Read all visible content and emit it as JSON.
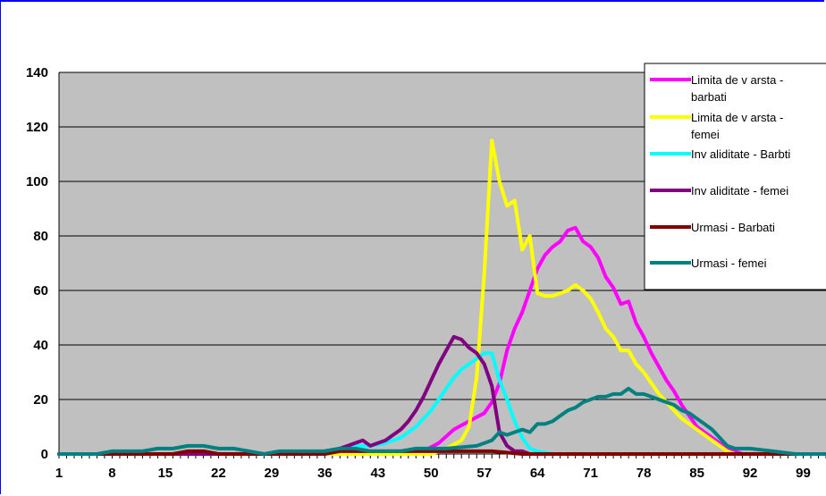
{
  "chart_data": {
    "type": "line",
    "ylim": [
      0,
      140
    ],
    "yticks": [
      0,
      20,
      40,
      60,
      80,
      100,
      120,
      140
    ],
    "x_start": 1,
    "x_end": 102,
    "xtick_labels": [
      "1",
      "8",
      "15",
      "22",
      "29",
      "36",
      "43",
      "50",
      "57",
      "64",
      "71",
      "78",
      "85",
      "92",
      "99"
    ],
    "grid": true,
    "legend_position": "top-right",
    "series": [
      {
        "name": "Limita de varsta - barbati",
        "color": "#ff00ff",
        "points": [
          [
            1,
            0
          ],
          [
            47,
            0
          ],
          [
            49,
            1
          ],
          [
            51,
            4
          ],
          [
            53,
            9
          ],
          [
            55,
            12
          ],
          [
            57,
            15
          ],
          [
            58,
            19
          ],
          [
            59,
            26
          ],
          [
            60,
            38
          ],
          [
            61,
            46
          ],
          [
            62,
            52
          ],
          [
            63,
            60
          ],
          [
            64,
            68
          ],
          [
            65,
            73
          ],
          [
            66,
            76
          ],
          [
            67,
            78
          ],
          [
            68,
            82
          ],
          [
            69,
            83
          ],
          [
            70,
            78
          ],
          [
            71,
            76
          ],
          [
            72,
            72
          ],
          [
            73,
            65
          ],
          [
            74,
            61
          ],
          [
            75,
            55
          ],
          [
            76,
            56
          ],
          [
            77,
            48
          ],
          [
            78,
            43
          ],
          [
            79,
            37
          ],
          [
            80,
            32
          ],
          [
            81,
            27
          ],
          [
            82,
            23
          ],
          [
            83,
            18
          ],
          [
            84,
            14
          ],
          [
            85,
            10
          ],
          [
            86,
            8
          ],
          [
            87,
            6
          ],
          [
            88,
            4
          ],
          [
            89,
            2
          ],
          [
            90,
            1
          ],
          [
            91,
            0
          ],
          [
            102,
            0
          ]
        ]
      },
      {
        "name": "Limita de varsta - femei",
        "color": "#ffff00",
        "points": [
          [
            1,
            0
          ],
          [
            50,
            0
          ],
          [
            52,
            2
          ],
          [
            54,
            5
          ],
          [
            55,
            10
          ],
          [
            56,
            28
          ],
          [
            57,
            66
          ],
          [
            58,
            115
          ],
          [
            59,
            100
          ],
          [
            60,
            91
          ],
          [
            61,
            93
          ],
          [
            62,
            75
          ],
          [
            63,
            80
          ],
          [
            64,
            59
          ],
          [
            65,
            58
          ],
          [
            66,
            58
          ],
          [
            67,
            59
          ],
          [
            68,
            60
          ],
          [
            69,
            62
          ],
          [
            70,
            60
          ],
          [
            71,
            57
          ],
          [
            72,
            52
          ],
          [
            73,
            46
          ],
          [
            74,
            43
          ],
          [
            75,
            38
          ],
          [
            76,
            38
          ],
          [
            77,
            33
          ],
          [
            78,
            30
          ],
          [
            79,
            26
          ],
          [
            80,
            22
          ],
          [
            81,
            19
          ],
          [
            82,
            16
          ],
          [
            83,
            13
          ],
          [
            84,
            11
          ],
          [
            85,
            9
          ],
          [
            86,
            7
          ],
          [
            87,
            5
          ],
          [
            88,
            3
          ],
          [
            89,
            1
          ],
          [
            90,
            0
          ],
          [
            102,
            0
          ]
        ]
      },
      {
        "name": "Invaliditate - Barbti",
        "color": "#00ffff",
        "points": [
          [
            1,
            0
          ],
          [
            34,
            0
          ],
          [
            36,
            1
          ],
          [
            38,
            2
          ],
          [
            40,
            3
          ],
          [
            42,
            3
          ],
          [
            44,
            4
          ],
          [
            46,
            6
          ],
          [
            47,
            8
          ],
          [
            48,
            10
          ],
          [
            49,
            13
          ],
          [
            50,
            16
          ],
          [
            51,
            20
          ],
          [
            52,
            24
          ],
          [
            53,
            28
          ],
          [
            54,
            31
          ],
          [
            55,
            33
          ],
          [
            56,
            35
          ],
          [
            57,
            37
          ],
          [
            58,
            37
          ],
          [
            59,
            27
          ],
          [
            60,
            20
          ],
          [
            61,
            12
          ],
          [
            62,
            6
          ],
          [
            63,
            2
          ],
          [
            64,
            1
          ],
          [
            66,
            0
          ],
          [
            102,
            0
          ]
        ]
      },
      {
        "name": "Invaliditate - femei",
        "color": "#800080",
        "points": [
          [
            1,
            0
          ],
          [
            34,
            0
          ],
          [
            36,
            1
          ],
          [
            38,
            2
          ],
          [
            39,
            3
          ],
          [
            40,
            4
          ],
          [
            41,
            5
          ],
          [
            42,
            3
          ],
          [
            43,
            4
          ],
          [
            44,
            5
          ],
          [
            45,
            7
          ],
          [
            46,
            9
          ],
          [
            47,
            12
          ],
          [
            48,
            16
          ],
          [
            49,
            21
          ],
          [
            50,
            27
          ],
          [
            51,
            33
          ],
          [
            52,
            38
          ],
          [
            53,
            43
          ],
          [
            54,
            42
          ],
          [
            55,
            39
          ],
          [
            56,
            37
          ],
          [
            57,
            33
          ],
          [
            58,
            25
          ],
          [
            59,
            8
          ],
          [
            60,
            3
          ],
          [
            61,
            1
          ],
          [
            62,
            1
          ],
          [
            63,
            0
          ],
          [
            102,
            0
          ]
        ]
      },
      {
        "name": "Urmasi - Barbati",
        "color": "#800000",
        "points": [
          [
            1,
            0
          ],
          [
            16,
            0
          ],
          [
            18,
            1
          ],
          [
            20,
            1
          ],
          [
            22,
            0
          ],
          [
            36,
            0
          ],
          [
            38,
            1
          ],
          [
            42,
            1
          ],
          [
            46,
            1
          ],
          [
            50,
            1
          ],
          [
            54,
            1
          ],
          [
            58,
            1
          ],
          [
            62,
            0
          ],
          [
            102,
            0
          ]
        ]
      },
      {
        "name": "Urmasi - femei",
        "color": "#008080",
        "points": [
          [
            1,
            0
          ],
          [
            6,
            0
          ],
          [
            8,
            1
          ],
          [
            12,
            1
          ],
          [
            14,
            2
          ],
          [
            16,
            2
          ],
          [
            18,
            3
          ],
          [
            20,
            3
          ],
          [
            22,
            2
          ],
          [
            24,
            2
          ],
          [
            26,
            1
          ],
          [
            28,
            0
          ],
          [
            30,
            1
          ],
          [
            34,
            1
          ],
          [
            36,
            1
          ],
          [
            38,
            2
          ],
          [
            40,
            2
          ],
          [
            42,
            1
          ],
          [
            46,
            1
          ],
          [
            48,
            2
          ],
          [
            52,
            2
          ],
          [
            56,
            3
          ],
          [
            58,
            5
          ],
          [
            59,
            8
          ],
          [
            60,
            7
          ],
          [
            61,
            8
          ],
          [
            62,
            9
          ],
          [
            63,
            8
          ],
          [
            64,
            11
          ],
          [
            65,
            11
          ],
          [
            66,
            12
          ],
          [
            67,
            14
          ],
          [
            68,
            16
          ],
          [
            69,
            17
          ],
          [
            70,
            19
          ],
          [
            71,
            20
          ],
          [
            72,
            21
          ],
          [
            73,
            21
          ],
          [
            74,
            22
          ],
          [
            75,
            22
          ],
          [
            76,
            24
          ],
          [
            77,
            22
          ],
          [
            78,
            22
          ],
          [
            79,
            21
          ],
          [
            80,
            20
          ],
          [
            81,
            19
          ],
          [
            82,
            18
          ],
          [
            83,
            16
          ],
          [
            84,
            15
          ],
          [
            85,
            13
          ],
          [
            86,
            11
          ],
          [
            87,
            9
          ],
          [
            88,
            6
          ],
          [
            89,
            3
          ],
          [
            90,
            2
          ],
          [
            92,
            2
          ],
          [
            95,
            1
          ],
          [
            98,
            0
          ],
          [
            102,
            0
          ]
        ]
      }
    ],
    "legend_entries": [
      [
        "Limita de v arsta -",
        "barbati"
      ],
      [
        "Limita de v arsta -",
        "femei"
      ],
      [
        "Inv aliditate - Barbti"
      ],
      [
        "Inv aliditate - femei"
      ],
      [
        "Urmasi - Barbati"
      ],
      [
        "Urmasi - femei"
      ]
    ]
  }
}
